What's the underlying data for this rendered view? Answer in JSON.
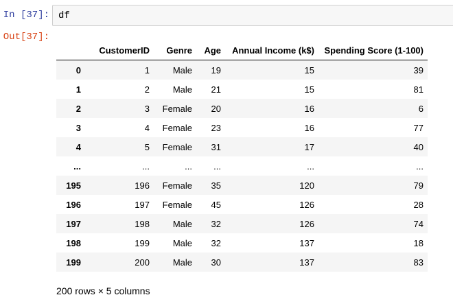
{
  "cell": {
    "in_prompt": "In [37]:",
    "out_prompt": "Out[37]:",
    "code": "df"
  },
  "table": {
    "columns": [
      "",
      "CustomerID",
      "Genre",
      "Age",
      "Annual Income (k$)",
      "Spending Score (1-100)"
    ],
    "rows": [
      {
        "index": "0",
        "cells": [
          "1",
          "Male",
          "19",
          "15",
          "39"
        ]
      },
      {
        "index": "1",
        "cells": [
          "2",
          "Male",
          "21",
          "15",
          "81"
        ]
      },
      {
        "index": "2",
        "cells": [
          "3",
          "Female",
          "20",
          "16",
          "6"
        ]
      },
      {
        "index": "3",
        "cells": [
          "4",
          "Female",
          "23",
          "16",
          "77"
        ]
      },
      {
        "index": "4",
        "cells": [
          "5",
          "Female",
          "31",
          "17",
          "40"
        ]
      },
      {
        "index": "...",
        "cells": [
          "...",
          "...",
          "...",
          "...",
          "..."
        ]
      },
      {
        "index": "195",
        "cells": [
          "196",
          "Female",
          "35",
          "120",
          "79"
        ]
      },
      {
        "index": "196",
        "cells": [
          "197",
          "Female",
          "45",
          "126",
          "28"
        ]
      },
      {
        "index": "197",
        "cells": [
          "198",
          "Male",
          "32",
          "126",
          "74"
        ]
      },
      {
        "index": "198",
        "cells": [
          "199",
          "Male",
          "32",
          "137",
          "18"
        ]
      },
      {
        "index": "199",
        "cells": [
          "200",
          "Male",
          "30",
          "137",
          "83"
        ]
      }
    ]
  },
  "shape_info": "200 rows × 5 columns"
}
